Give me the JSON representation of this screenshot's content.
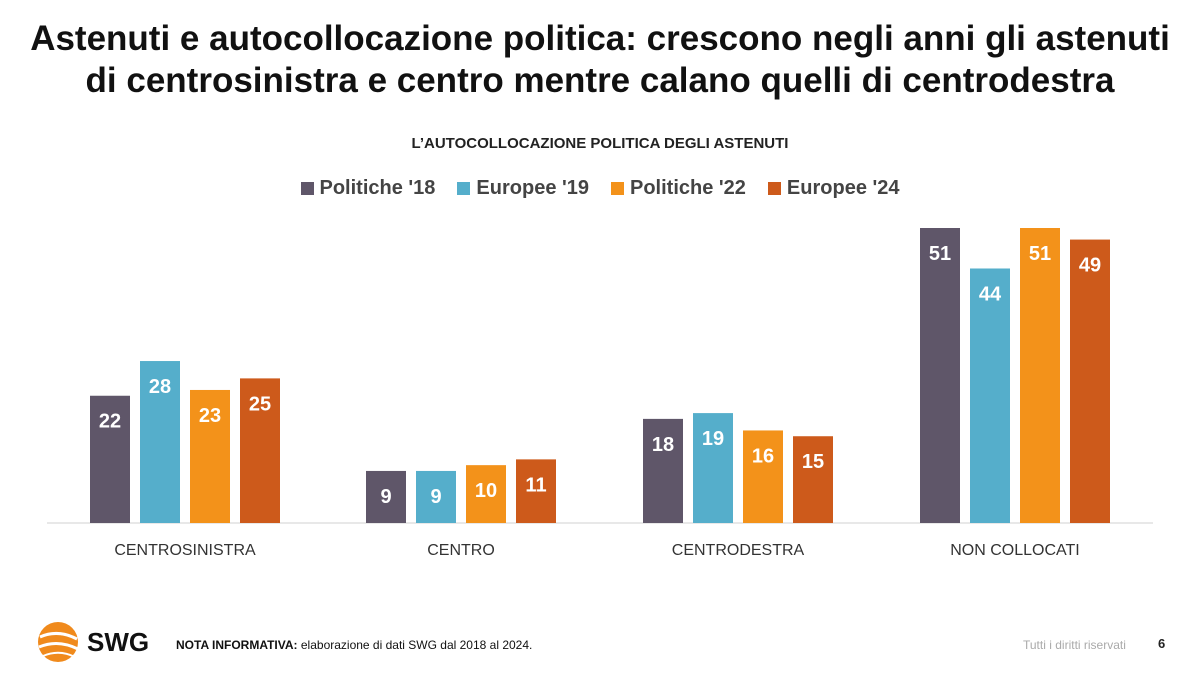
{
  "title_line1": "Astenuti e autocollocazione politica: crescono negli anni gli astenuti",
  "title_line2": "di centrosinistra e centro mentre calano quelli di centrodestra",
  "chart_data": {
    "type": "bar",
    "title": "L’AUTOCOLLOCAZIONE POLITICA DEGLI ASTENUTI",
    "categories": [
      "CENTROSINISTRA",
      "CENTRO",
      "CENTRODESTRA",
      "NON COLLOCATI"
    ],
    "series": [
      {
        "name": "Politiche '18",
        "color": "#5f5669",
        "values": [
          22,
          9,
          18,
          51
        ]
      },
      {
        "name": "Europee '19",
        "color": "#55aecb",
        "values": [
          28,
          9,
          19,
          44
        ]
      },
      {
        "name": "Politiche '22",
        "color": "#f3921a",
        "values": [
          23,
          10,
          16,
          51
        ]
      },
      {
        "name": "Europee '24",
        "color": "#cd5a1b",
        "values": [
          25,
          11,
          15,
          49
        ]
      }
    ],
    "legend_position": "top",
    "grid": false,
    "ylim": [
      0,
      51
    ]
  },
  "footer": {
    "logo": "SWG",
    "note_label": "NOTA INFORMATIVA:",
    "note_text": " elaborazione di dati SWG dal 2018 al 2024.",
    "rights": "Tutti i diritti riservati",
    "page_number": "6"
  }
}
